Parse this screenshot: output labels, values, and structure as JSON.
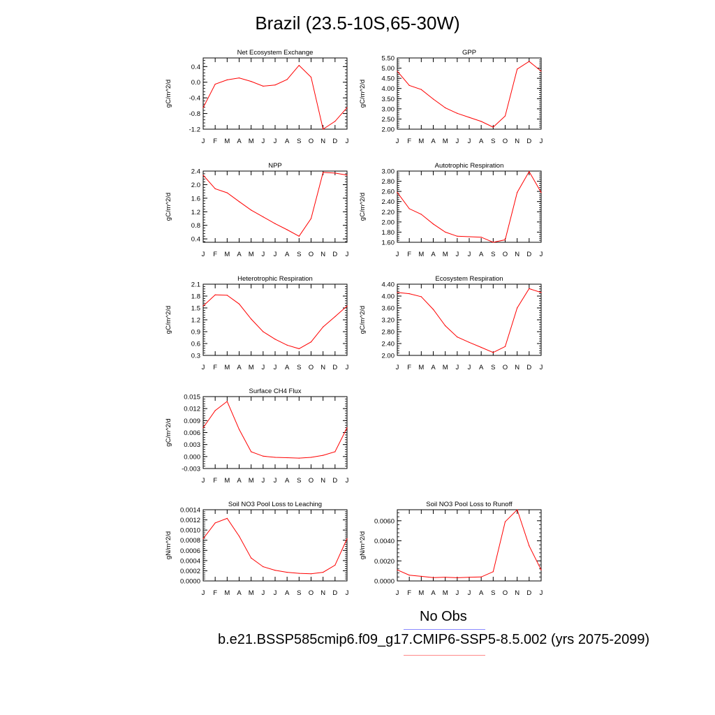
{
  "title": "Brazil (23.5-10S,65-30W)",
  "legend": {
    "obs_label": "No Obs",
    "case_label": "b.e21.BSSP585cmip6.f09_g17.CMIP6-SSP5-8.5.002 (yrs 2075-2099)",
    "obs_color": "#8a8aff",
    "case_color": "#ff8a8a"
  },
  "line_color": "#ff0000",
  "chart_data": [
    {
      "type": "line",
      "title": "Net Ecosystem Exchange",
      "ylabel": "gC/m^2/d",
      "categories": [
        "J",
        "F",
        "M",
        "A",
        "M",
        "J",
        "J",
        "A",
        "S",
        "O",
        "N",
        "D",
        "J"
      ],
      "ylim": [
        -1.2,
        0.62
      ],
      "yticks": [
        -1.2,
        -0.8,
        -0.4,
        0.0,
        0.4
      ],
      "ytick_labels": [
        "-1.2",
        "-0.8",
        "-0.4",
        "0.0",
        "0.4"
      ],
      "values": [
        -0.65,
        -0.05,
        0.06,
        0.11,
        0.02,
        -0.1,
        -0.07,
        0.07,
        0.43,
        0.13,
        -1.2,
        -1.0,
        -0.65
      ]
    },
    {
      "type": "line",
      "title": "GPP",
      "ylabel": "gC/m^2/d",
      "categories": [
        "J",
        "F",
        "M",
        "A",
        "M",
        "J",
        "J",
        "A",
        "S",
        "O",
        "N",
        "D",
        "J"
      ],
      "ylim": [
        2.0,
        5.5
      ],
      "yticks": [
        2.0,
        2.5,
        3.0,
        3.5,
        4.0,
        4.5,
        5.0,
        5.5
      ],
      "ytick_labels": [
        "2.00",
        "2.50",
        "3.00",
        "3.50",
        "4.00",
        "4.50",
        "5.00",
        "5.50"
      ],
      "values": [
        4.85,
        4.15,
        3.95,
        3.48,
        3.05,
        2.78,
        2.58,
        2.38,
        2.1,
        2.65,
        4.95,
        5.33,
        4.85
      ]
    },
    {
      "type": "line",
      "title": "NPP",
      "ylabel": "gC/m^2/d",
      "categories": [
        "J",
        "F",
        "M",
        "A",
        "M",
        "J",
        "J",
        "A",
        "S",
        "O",
        "N",
        "D",
        "J"
      ],
      "ylim": [
        0.3,
        2.4
      ],
      "yticks": [
        0.4,
        0.8,
        1.2,
        1.6,
        2.0,
        2.4
      ],
      "ytick_labels": [
        "0.4",
        "0.8",
        "1.2",
        "1.6",
        "2.0",
        "2.4"
      ],
      "values": [
        2.28,
        1.88,
        1.76,
        1.5,
        1.25,
        1.05,
        0.85,
        0.67,
        0.48,
        1.0,
        2.36,
        2.34,
        2.28
      ]
    },
    {
      "type": "line",
      "title": "Autotrophic Respiration",
      "ylabel": "gC/m^2/d",
      "categories": [
        "J",
        "F",
        "M",
        "A",
        "M",
        "J",
        "J",
        "A",
        "S",
        "O",
        "N",
        "D",
        "J"
      ],
      "ylim": [
        1.6,
        3.0
      ],
      "yticks": [
        1.6,
        1.8,
        2.0,
        2.2,
        2.4,
        2.6,
        2.8,
        3.0
      ],
      "ytick_labels": [
        "1.60",
        "1.80",
        "2.00",
        "2.20",
        "2.40",
        "2.60",
        "2.80",
        "3.00"
      ],
      "values": [
        2.58,
        2.26,
        2.15,
        1.96,
        1.8,
        1.72,
        1.71,
        1.7,
        1.6,
        1.65,
        2.58,
        2.99,
        2.58
      ]
    },
    {
      "type": "line",
      "title": "Heterotrophic Respiration",
      "ylabel": "gC/m^2/d",
      "categories": [
        "J",
        "F",
        "M",
        "A",
        "M",
        "J",
        "J",
        "A",
        "S",
        "O",
        "N",
        "D",
        "J"
      ],
      "ylim": [
        0.3,
        2.1
      ],
      "yticks": [
        0.3,
        0.6,
        0.9,
        1.2,
        1.5,
        1.8,
        2.1
      ],
      "ytick_labels": [
        "0.3",
        "0.6",
        "0.9",
        "1.2",
        "1.5",
        "1.8",
        "2.1"
      ],
      "values": [
        1.55,
        1.83,
        1.82,
        1.6,
        1.22,
        0.9,
        0.71,
        0.56,
        0.47,
        0.64,
        1.02,
        1.28,
        1.55
      ]
    },
    {
      "type": "line",
      "title": "Ecosystem Respiration",
      "ylabel": "gC/m^2/d",
      "categories": [
        "J",
        "F",
        "M",
        "A",
        "M",
        "J",
        "J",
        "A",
        "S",
        "O",
        "N",
        "D",
        "J"
      ],
      "ylim": [
        2.0,
        4.4
      ],
      "yticks": [
        2.0,
        2.4,
        2.8,
        3.2,
        3.6,
        4.0,
        4.4
      ],
      "ytick_labels": [
        "2.00",
        "2.40",
        "2.80",
        "3.20",
        "3.60",
        "4.00",
        "4.40"
      ],
      "values": [
        4.12,
        4.08,
        3.98,
        3.55,
        3.0,
        2.62,
        2.44,
        2.27,
        2.1,
        2.3,
        3.6,
        4.25,
        4.12
      ]
    },
    {
      "type": "line",
      "title": "Surface CH4 Flux",
      "ylabel": "gC/m^2/d",
      "categories": [
        "J",
        "F",
        "M",
        "A",
        "M",
        "J",
        "J",
        "A",
        "S",
        "O",
        "N",
        "D",
        "J"
      ],
      "ylim": [
        -0.003,
        0.015
      ],
      "yticks": [
        -0.003,
        0.0,
        0.003,
        0.006,
        0.009,
        0.012,
        0.015
      ],
      "ytick_labels": [
        "-0.003",
        "0.000",
        "0.003",
        "0.006",
        "0.009",
        "0.012",
        "0.015"
      ],
      "values": [
        0.0072,
        0.0115,
        0.0138,
        0.0068,
        0.0012,
        0.0001,
        -0.0002,
        -0.0003,
        -0.0004,
        -0.0002,
        0.0003,
        0.0012,
        0.0072
      ]
    },
    {
      "type": "line",
      "title": "Soil NO3 Pool Loss to Leaching",
      "ylabel": "gN/m^2/d",
      "categories": [
        "J",
        "F",
        "M",
        "A",
        "M",
        "J",
        "J",
        "A",
        "S",
        "O",
        "N",
        "D",
        "J"
      ],
      "ylim": [
        0.0,
        0.0014
      ],
      "yticks": [
        0.0,
        0.0002,
        0.0004,
        0.0006,
        0.0008,
        0.001,
        0.0012,
        0.0014
      ],
      "ytick_labels": [
        "0.0000",
        "0.0002",
        "0.0004",
        "0.0006",
        "0.0008",
        "0.0010",
        "0.0012",
        "0.0014"
      ],
      "values": [
        0.00083,
        0.00114,
        0.00123,
        0.00088,
        0.00045,
        0.00028,
        0.00021,
        0.00017,
        0.00015,
        0.00014,
        0.00017,
        0.00031,
        0.00083
      ]
    },
    {
      "type": "line",
      "title": "Soil NO3 Pool Loss to Runoff",
      "ylabel": "gN/m^2/d",
      "categories": [
        "J",
        "F",
        "M",
        "A",
        "M",
        "J",
        "J",
        "A",
        "S",
        "O",
        "N",
        "D",
        "J"
      ],
      "ylim": [
        0.0,
        0.0071
      ],
      "yticks": [
        0.0,
        0.002,
        0.004,
        0.006
      ],
      "ytick_labels": [
        "0.0000",
        "0.0020",
        "0.0040",
        "0.0060"
      ],
      "values": [
        0.0011,
        0.00058,
        0.00046,
        0.00033,
        0.00037,
        0.00032,
        0.00037,
        0.0004,
        0.00092,
        0.0059,
        0.0071,
        0.0035,
        0.0011
      ]
    }
  ]
}
